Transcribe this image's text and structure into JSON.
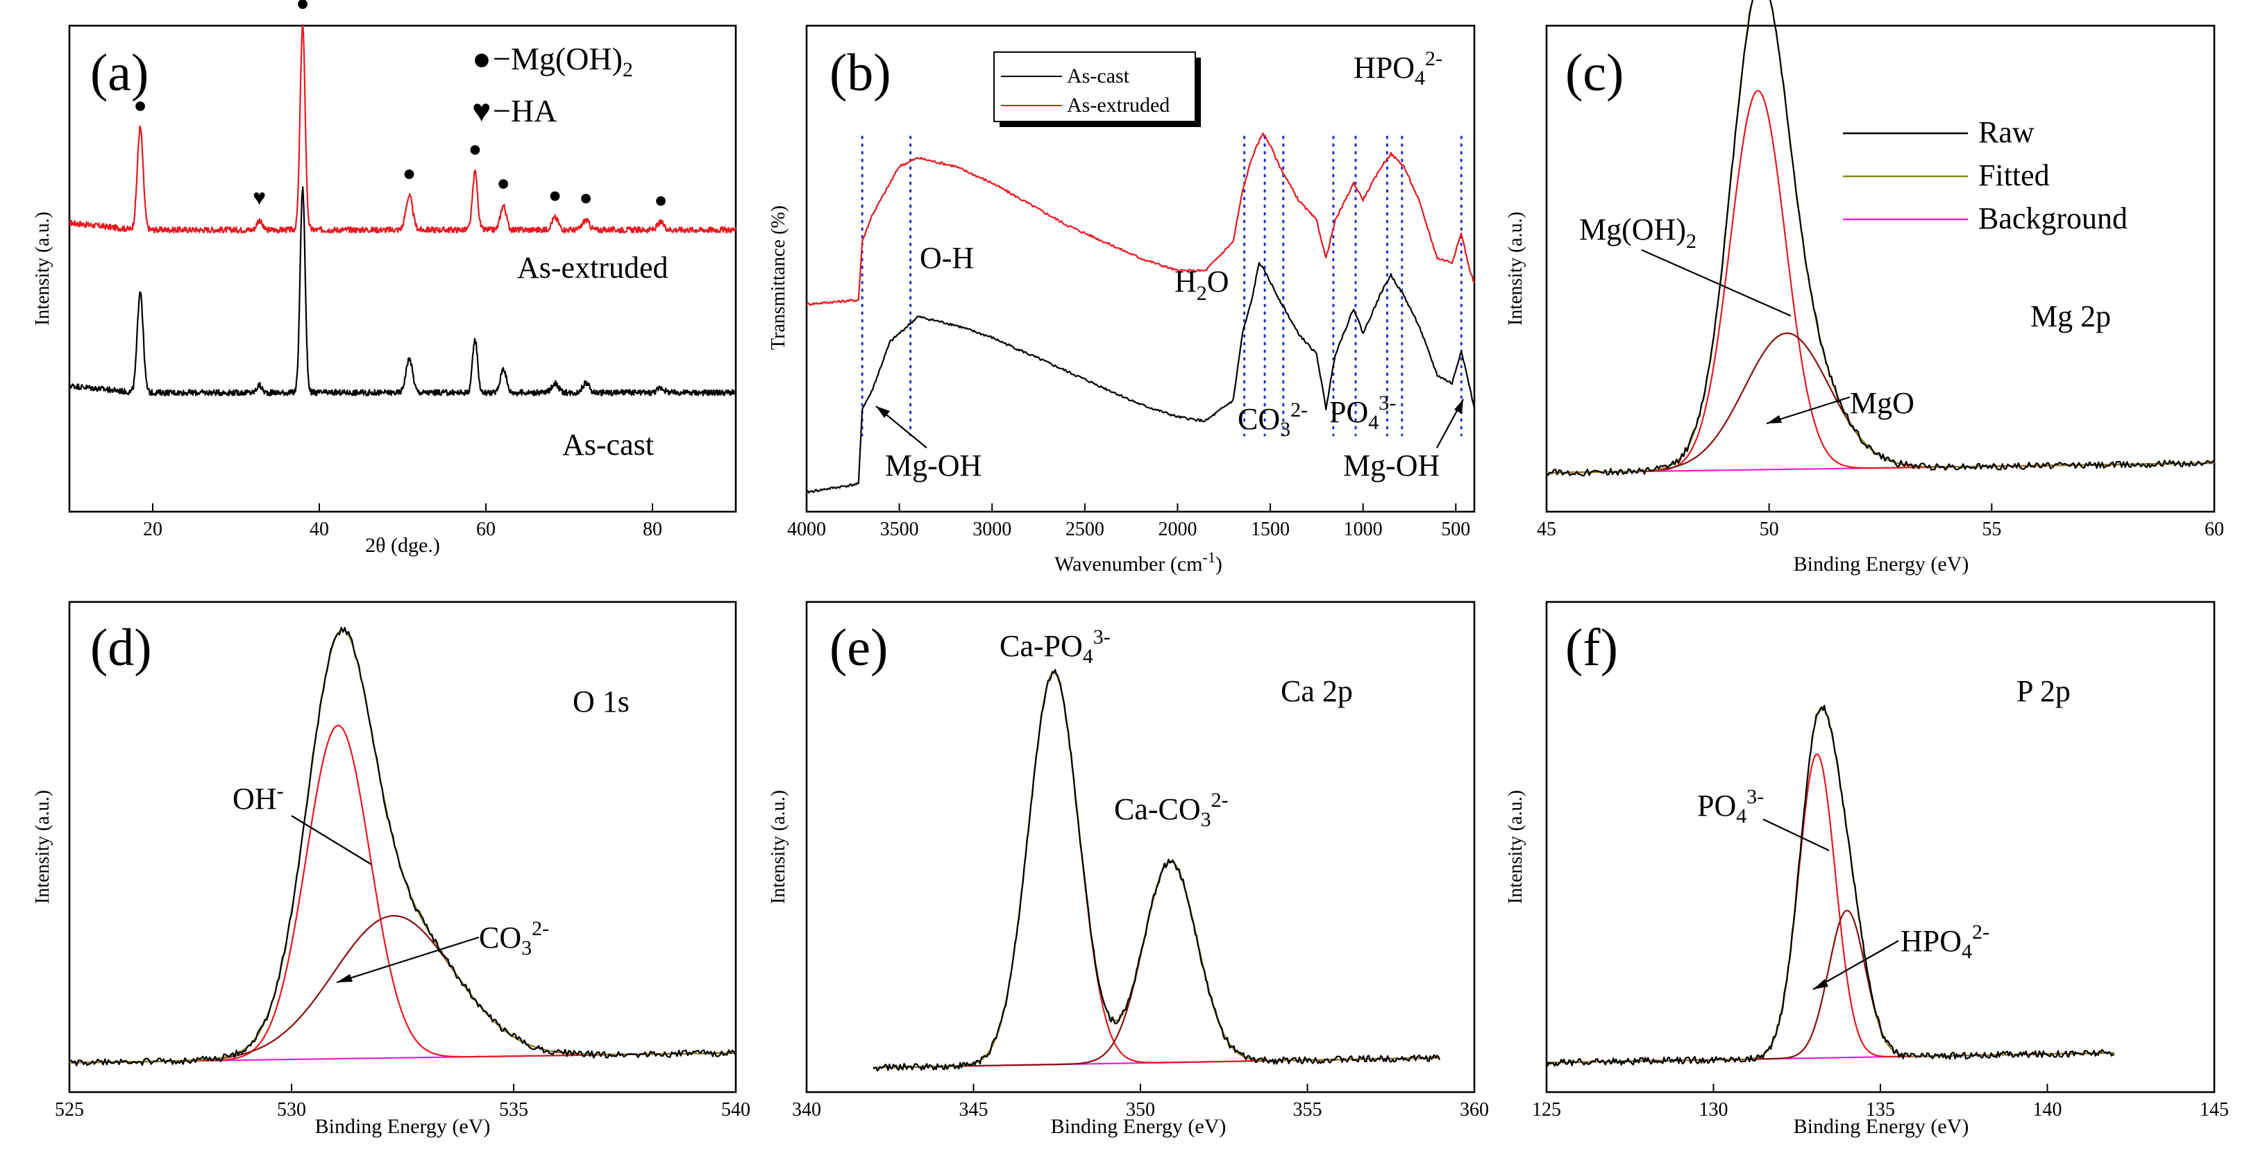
{
  "chart_data": [
    {
      "id": "a",
      "type": "line",
      "panel_label": "(a)",
      "xlabel": "2θ (dge.)",
      "ylabel": "Intensity (a.u.)",
      "xlim": [
        10,
        90
      ],
      "xticks": [
        20,
        40,
        60,
        80
      ],
      "x_tick_labels": [
        "20",
        "40",
        "60",
        "80"
      ],
      "legend": [
        {
          "marker": "●",
          "text": "−Mg(OH)",
          "sub": "2"
        },
        {
          "marker": "♥",
          "text": "−HA",
          "sub": ""
        }
      ],
      "series": [
        {
          "name": "As-extruded",
          "color": "#e8191f",
          "offset": 0.58,
          "peaks": [
            [
              18.5,
              0.21,
              0.35
            ],
            [
              38.0,
              0.42,
              0.3
            ],
            [
              50.8,
              0.07,
              0.4
            ],
            [
              58.7,
              0.12,
              0.3
            ],
            [
              62.1,
              0.05,
              0.35
            ],
            [
              68.3,
              0.025,
              0.4
            ],
            [
              72.0,
              0.02,
              0.4
            ],
            [
              81.0,
              0.015,
              0.4
            ],
            [
              32.8,
              0.02,
              0.3
            ]
          ]
        },
        {
          "name": "As-cast",
          "color": "#000000",
          "offset": 0.245,
          "peaks": [
            [
              18.5,
              0.21,
              0.35
            ],
            [
              38.0,
              0.42,
              0.3
            ],
            [
              50.8,
              0.07,
              0.4
            ],
            [
              58.7,
              0.11,
              0.3
            ],
            [
              62.1,
              0.05,
              0.35
            ],
            [
              68.3,
              0.02,
              0.4
            ],
            [
              72.0,
              0.02,
              0.4
            ],
            [
              81.0,
              0.01,
              0.4
            ],
            [
              32.8,
              0.015,
              0.3
            ]
          ]
        }
      ],
      "markers": [
        {
          "x": 18.5,
          "symbol": "●"
        },
        {
          "x": 38.0,
          "symbol": "●"
        },
        {
          "x": 50.8,
          "symbol": "●"
        },
        {
          "x": 58.7,
          "symbol": "●"
        },
        {
          "x": 62.1,
          "symbol": "●"
        },
        {
          "x": 68.3,
          "symbol": "●"
        },
        {
          "x": 72.0,
          "symbol": "●"
        },
        {
          "x": 81.0,
          "symbol": "●"
        },
        {
          "x": 32.8,
          "symbol": "♥"
        }
      ],
      "series_labels": [
        "As-extruded",
        "As-cast"
      ]
    },
    {
      "id": "b",
      "type": "line",
      "panel_label": "(b)",
      "xlabel": "Wavenumber (cm",
      "xlabel_sup": "-1",
      "xlabel_end": ")",
      "ylabel": "Transmittance (%)",
      "xlim": [
        4000,
        400
      ],
      "xticks": [
        4000,
        3500,
        3000,
        2500,
        2000,
        1500,
        1000,
        500
      ],
      "x_tick_labels": [
        "4000",
        "3500",
        "3000",
        "2500",
        "2000",
        "1500",
        "1000",
        "500"
      ],
      "legend": [
        "As-cast",
        "As-extruded"
      ],
      "series": [
        {
          "name": "As-cast",
          "color": "#000000",
          "points": [
            [
              4000,
              0.0
            ],
            [
              3720,
              0.02
            ],
            [
              3700,
              0.2
            ],
            [
              3650,
              0.24
            ],
            [
              3550,
              0.36
            ],
            [
              3400,
              0.42
            ],
            [
              3200,
              0.4
            ],
            [
              3000,
              0.37
            ],
            [
              2800,
              0.33
            ],
            [
              2600,
              0.29
            ],
            [
              2400,
              0.25
            ],
            [
              2200,
              0.21
            ],
            [
              2000,
              0.18
            ],
            [
              1850,
              0.17
            ],
            [
              1700,
              0.22
            ],
            [
              1650,
              0.38
            ],
            [
              1600,
              0.46
            ],
            [
              1560,
              0.55
            ],
            [
              1520,
              0.52
            ],
            [
              1450,
              0.46
            ],
            [
              1350,
              0.38
            ],
            [
              1250,
              0.33
            ],
            [
              1200,
              0.2
            ],
            [
              1150,
              0.33
            ],
            [
              1050,
              0.44
            ],
            [
              1000,
              0.38
            ],
            [
              900,
              0.48
            ],
            [
              850,
              0.52
            ],
            [
              780,
              0.47
            ],
            [
              700,
              0.4
            ],
            [
              600,
              0.28
            ],
            [
              520,
              0.26
            ],
            [
              470,
              0.34
            ],
            [
              430,
              0.26
            ],
            [
              400,
              0.2
            ]
          ]
        },
        {
          "name": "As-extruded",
          "color": "#e8191f",
          "points": [
            [
              4000,
              0.45
            ],
            [
              3720,
              0.46
            ],
            [
              3700,
              0.6
            ],
            [
              3650,
              0.66
            ],
            [
              3500,
              0.78
            ],
            [
              3400,
              0.8
            ],
            [
              3200,
              0.78
            ],
            [
              3000,
              0.74
            ],
            [
              2800,
              0.69
            ],
            [
              2600,
              0.64
            ],
            [
              2400,
              0.6
            ],
            [
              2200,
              0.56
            ],
            [
              2000,
              0.53
            ],
            [
              1850,
              0.53
            ],
            [
              1700,
              0.6
            ],
            [
              1650,
              0.72
            ],
            [
              1600,
              0.8
            ],
            [
              1540,
              0.86
            ],
            [
              1500,
              0.83
            ],
            [
              1450,
              0.78
            ],
            [
              1350,
              0.7
            ],
            [
              1250,
              0.65
            ],
            [
              1200,
              0.56
            ],
            [
              1150,
              0.65
            ],
            [
              1050,
              0.74
            ],
            [
              1000,
              0.7
            ],
            [
              900,
              0.78
            ],
            [
              850,
              0.81
            ],
            [
              780,
              0.78
            ],
            [
              700,
              0.7
            ],
            [
              600,
              0.56
            ],
            [
              520,
              0.55
            ],
            [
              470,
              0.62
            ],
            [
              430,
              0.54
            ],
            [
              400,
              0.5
            ]
          ]
        }
      ],
      "vlines": [
        3700,
        3440,
        1640,
        1530,
        1430,
        1160,
        1040,
        870,
        790,
        470
      ],
      "annotations": {
        "oh": "O-H",
        "h2o": "H",
        "h2o_sub": "2",
        "h2o_end": "O",
        "co3": "CO",
        "co3_sub": "3",
        "co3_sup": "2-",
        "po4": "PO",
        "po4_sub": "4",
        "po4_sup": "3-",
        "hpo4": "HPO",
        "hpo4_sub": "4",
        "hpo4_sup": "2-",
        "mgoh_left": "Mg-OH",
        "mgoh_right": "Mg-OH"
      }
    },
    {
      "id": "c",
      "type": "line",
      "panel_label": "(c)",
      "xlabel": "Binding Energy (eV)",
      "ylabel": "Intensity (a.u.)",
      "xlim": [
        45,
        60
      ],
      "xticks": [
        45,
        50,
        55,
        60
      ],
      "x_tick_labels": [
        "45",
        "50",
        "55",
        "60"
      ],
      "legend": [
        "Raw",
        "Fitted",
        "Background"
      ],
      "element": "Mg  2p",
      "components": [
        {
          "name": "Mg(OH)2",
          "center": 49.75,
          "height": 0.78,
          "width": 0.62
        },
        {
          "name": "MgO",
          "center": 50.4,
          "height": 0.28,
          "width": 0.95
        }
      ],
      "baseline": 0.08,
      "data_range": [
        45,
        60
      ],
      "annotations": {
        "c1": "Mg(OH)",
        "c1_sub": "2",
        "c2": "MgO"
      }
    },
    {
      "id": "d",
      "type": "line",
      "panel_label": "(d)",
      "xlabel": "Binding Energy (eV)",
      "ylabel": "Intensity (a.u.)",
      "xlim": [
        525,
        540
      ],
      "xticks": [
        525,
        530,
        535,
        540
      ],
      "x_tick_labels": [
        "525",
        "530",
        "535",
        "540"
      ],
      "element": "O  1s",
      "components": [
        {
          "name": "OH-",
          "center": 531.05,
          "height": 0.68,
          "width": 0.72
        },
        {
          "name": "CO3 2-",
          "center": 532.3,
          "height": 0.29,
          "width": 1.35
        }
      ],
      "baseline": 0.06,
      "data_range": [
        525,
        540
      ],
      "annotations": {
        "c1": "OH",
        "c1_sup": "-",
        "c2": "CO",
        "c2_sub": "3",
        "c2_sup": "2-"
      }
    },
    {
      "id": "e",
      "type": "line",
      "panel_label": "(e)",
      "xlabel": "Binding Energy (eV)",
      "ylabel": "Intensity (a.u.)",
      "xlim": [
        340,
        360
      ],
      "xticks": [
        340,
        345,
        350,
        355,
        360
      ],
      "x_tick_labels": [
        "340",
        "345",
        "350",
        "355",
        "360"
      ],
      "element": "Ca  2p",
      "components": [
        {
          "name": "Ca-PO4 3-",
          "center": 347.4,
          "height": 0.8,
          "width": 0.75
        },
        {
          "name": "Ca-CO3 2-",
          "center": 350.9,
          "height": 0.41,
          "width": 0.8
        }
      ],
      "baseline": 0.05,
      "data_range": [
        342,
        359
      ],
      "annotations": {
        "c1": "Ca-PO",
        "c1_sub": "4",
        "c1_sup": "3-",
        "c2": "Ca-CO",
        "c2_sub": "3",
        "c2_sup": "2-"
      }
    },
    {
      "id": "f",
      "type": "line",
      "panel_label": "(f)",
      "xlabel": "Binding Energy (eV)",
      "ylabel": "Intensity (a.u.)",
      "xlim": [
        125,
        145
      ],
      "xticks": [
        125,
        130,
        135,
        140,
        145
      ],
      "x_tick_labels": [
        "125",
        "130",
        "135",
        "140",
        "145"
      ],
      "element": "P  2p",
      "components": [
        {
          "name": "PO4 3-",
          "center": 133.1,
          "height": 0.62,
          "width": 0.55
        },
        {
          "name": "HPO4 2-",
          "center": 134.0,
          "height": 0.3,
          "width": 0.55
        }
      ],
      "baseline": 0.06,
      "data_range": [
        125,
        142
      ],
      "annotations": {
        "c1": "PO",
        "c1_sub": "4",
        "c1_sup": "3-",
        "c2": "HPO",
        "c2_sub": "4",
        "c2_sup": "2-"
      }
    }
  ]
}
